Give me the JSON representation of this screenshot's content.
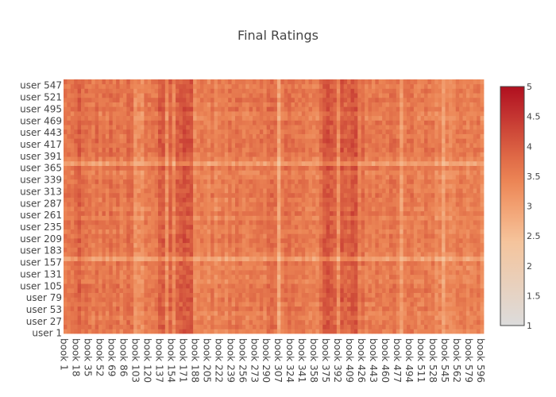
{
  "chart_data": {
    "type": "heatmap",
    "title": "Final Ratings",
    "xlabel": "",
    "ylabel": "",
    "x_count": 600,
    "y_count": 560,
    "x_tick_labels": [
      "book 1",
      "book 18",
      "book 35",
      "book 52",
      "book 69",
      "book 86",
      "book 103",
      "book 120",
      "book 137",
      "book 154",
      "book 171",
      "book 188",
      "book 205",
      "book 222",
      "book 239",
      "book 256",
      "book 273",
      "book 290",
      "book 307",
      "book 324",
      "book 341",
      "book 358",
      "book 375",
      "book 392",
      "book 409",
      "book 426",
      "book 443",
      "book 460",
      "book 477",
      "book 494",
      "book 511",
      "book 528",
      "book 545",
      "book 562",
      "book 579",
      "book 596"
    ],
    "y_tick_labels": [
      "user 1",
      "user 27",
      "user 53",
      "user 79",
      "user 105",
      "user 131",
      "user 157",
      "user 183",
      "user 209",
      "user 235",
      "user 261",
      "user 287",
      "user 313",
      "user 339",
      "user 365",
      "user 391",
      "user 417",
      "user 443",
      "user 469",
      "user 495",
      "user 521",
      "user 547"
    ],
    "zlim": [
      1,
      5
    ],
    "colorbar_ticks": [
      "1",
      "1.5",
      "2",
      "2.5",
      "3",
      "3.5",
      "4",
      "4.5",
      "5"
    ],
    "colorscale": [
      {
        "stop": 0.0,
        "color": "#dcdcdc"
      },
      {
        "stop": 0.35,
        "color": "#f5c49c"
      },
      {
        "stop": 0.5,
        "color": "#f2a071"
      },
      {
        "stop": 0.6,
        "color": "#ec8656"
      },
      {
        "stop": 0.7,
        "color": "#e06b47"
      },
      {
        "stop": 0.8,
        "color": "#d04d3a"
      },
      {
        "stop": 0.9,
        "color": "#c02d2e"
      },
      {
        "stop": 1.0,
        "color": "#b0101f"
      }
    ],
    "column_profile": [
      {
        "from_book": 1,
        "to_book": 14,
        "mean_rating": 3.55
      },
      {
        "from_book": 15,
        "to_book": 26,
        "mean_rating": 3.85
      },
      {
        "from_book": 27,
        "to_book": 102,
        "mean_rating": 3.6
      },
      {
        "from_book": 103,
        "to_book": 114,
        "mean_rating": 3.2
      },
      {
        "from_book": 115,
        "to_book": 134,
        "mean_rating": 3.5
      },
      {
        "from_book": 135,
        "to_book": 184,
        "mean_rating": 4.0
      },
      {
        "from_book": 185,
        "to_book": 239,
        "mean_rating": 3.45
      },
      {
        "from_book": 240,
        "to_book": 274,
        "mean_rating": 3.6
      },
      {
        "from_book": 275,
        "to_book": 324,
        "mean_rating": 3.65
      },
      {
        "from_book": 325,
        "to_book": 369,
        "mean_rating": 3.55
      },
      {
        "from_book": 370,
        "to_book": 419,
        "mean_rating": 4.0
      },
      {
        "from_book": 420,
        "to_book": 499,
        "mean_rating": 3.6
      },
      {
        "from_book": 500,
        "to_book": 600,
        "mean_rating": 3.45
      }
    ]
  }
}
